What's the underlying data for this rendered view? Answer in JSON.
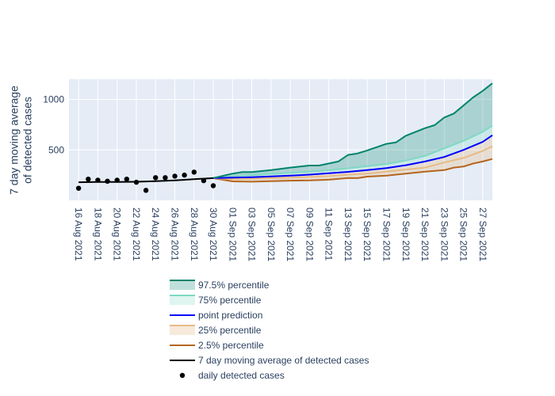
{
  "chart_data": {
    "type": "line",
    "title": "",
    "xlabel": "",
    "ylabel": "7 day moving average\nof detected cases",
    "x_tick_labels": [
      "16 Aug 2021",
      "18 Aug 2021",
      "20 Aug 2021",
      "22 Aug 2021",
      "24 Aug 2021",
      "26 Aug 2021",
      "28 Aug 2021",
      "30 Aug 2021",
      "01 Sep 2021",
      "03 Sep 2021",
      "05 Sep 2021",
      "07 Sep 2021",
      "09 Sep 2021",
      "11 Sep 2021",
      "13 Sep 2021",
      "15 Sep 2021",
      "17 Sep 2021",
      "19 Sep 2021",
      "21 Sep 2021",
      "23 Sep 2021",
      "25 Sep 2021",
      "27 Sep 2021"
    ],
    "y_tick_labels": [
      "500",
      "1000"
    ],
    "xlim": [
      "2021-08-15",
      "2021-09-28"
    ],
    "ylim": [
      0,
      1200
    ],
    "grid": true,
    "legend_position": "bottom",
    "series": [
      {
        "key": "p975",
        "name": "97.5% percentile",
        "color": "#00846b",
        "fill": "rgba(0,132,107,0.25)",
        "x": [
          "2021-08-30",
          "2021-09-01",
          "2021-09-02",
          "2021-09-03",
          "2021-09-05",
          "2021-09-07",
          "2021-09-09",
          "2021-09-10",
          "2021-09-12",
          "2021-09-13",
          "2021-09-14",
          "2021-09-15",
          "2021-09-17",
          "2021-09-18",
          "2021-09-19",
          "2021-09-21",
          "2021-09-22",
          "2021-09-23",
          "2021-09-24",
          "2021-09-25",
          "2021-09-26",
          "2021-09-27",
          "2021-09-28"
        ],
        "y": [
          220,
          265,
          280,
          280,
          300,
          325,
          345,
          345,
          385,
          450,
          465,
          495,
          560,
          575,
          640,
          715,
          745,
          820,
          860,
          940,
          1020,
          1085,
          1160
        ]
      },
      {
        "key": "p75",
        "name": "75% percentile",
        "color": "#7fd9c4",
        "fill": "rgba(127,217,196,0.25)",
        "x": [
          "2021-08-30",
          "2021-09-01",
          "2021-09-03",
          "2021-09-05",
          "2021-09-07",
          "2021-09-09",
          "2021-09-11",
          "2021-09-13",
          "2021-09-15",
          "2021-09-17",
          "2021-09-19",
          "2021-09-21",
          "2021-09-23",
          "2021-09-25",
          "2021-09-27",
          "2021-09-28"
        ],
        "y": [
          220,
          240,
          250,
          262,
          272,
          285,
          298,
          318,
          340,
          360,
          395,
          440,
          515,
          590,
          680,
          740
        ]
      },
      {
        "key": "point",
        "name": "point prediction",
        "color": "#0000ff",
        "x": [
          "2021-08-30",
          "2021-09-01",
          "2021-09-03",
          "2021-09-05",
          "2021-09-07",
          "2021-09-09",
          "2021-09-11",
          "2021-09-13",
          "2021-09-15",
          "2021-09-17",
          "2021-09-19",
          "2021-09-21",
          "2021-09-23",
          "2021-09-25",
          "2021-09-27",
          "2021-09-28"
        ],
        "y": [
          220,
          225,
          230,
          238,
          245,
          255,
          268,
          282,
          300,
          320,
          348,
          385,
          430,
          500,
          580,
          645
        ]
      },
      {
        "key": "p25",
        "name": "25% percentile",
        "color": "#e6bb85",
        "fill": "rgba(230,187,133,0.3)",
        "x": [
          "2021-08-30",
          "2021-09-01",
          "2021-09-03",
          "2021-09-05",
          "2021-09-07",
          "2021-09-09",
          "2021-09-11",
          "2021-09-13",
          "2021-09-15",
          "2021-09-17",
          "2021-09-19",
          "2021-09-21",
          "2021-09-23",
          "2021-09-25",
          "2021-09-27",
          "2021-09-28"
        ],
        "y": [
          220,
          210,
          215,
          220,
          225,
          232,
          240,
          255,
          265,
          285,
          305,
          325,
          375,
          420,
          490,
          535
        ]
      },
      {
        "key": "p025",
        "name": "2.5% percentile",
        "color": "#b5651d",
        "x": [
          "2021-08-30",
          "2021-09-01",
          "2021-09-03",
          "2021-09-05",
          "2021-09-07",
          "2021-09-09",
          "2021-09-11",
          "2021-09-13",
          "2021-09-14",
          "2021-09-15",
          "2021-09-17",
          "2021-09-19",
          "2021-09-21",
          "2021-09-23",
          "2021-09-24",
          "2021-09-25",
          "2021-09-26",
          "2021-09-27",
          "2021-09-28"
        ],
        "y": [
          220,
          188,
          185,
          190,
          195,
          198,
          205,
          222,
          220,
          235,
          245,
          265,
          285,
          300,
          325,
          335,
          365,
          385,
          410
        ]
      },
      {
        "key": "ma7",
        "name": "7 day moving average of detected cases",
        "color": "#000000",
        "x": [
          "2021-08-16",
          "2021-08-18",
          "2021-08-20",
          "2021-08-22",
          "2021-08-24",
          "2021-08-26",
          "2021-08-28",
          "2021-08-30"
        ],
        "y": [
          180,
          182,
          183,
          184,
          190,
          198,
          210,
          220
        ]
      },
      {
        "key": "daily",
        "name": "daily detected cases",
        "color": "#000000",
        "mode": "markers",
        "x": [
          "2021-08-16",
          "2021-08-17",
          "2021-08-18",
          "2021-08-19",
          "2021-08-20",
          "2021-08-21",
          "2021-08-22",
          "2021-08-23",
          "2021-08-24",
          "2021-08-25",
          "2021-08-26",
          "2021-08-27",
          "2021-08-28",
          "2021-08-29",
          "2021-08-30"
        ],
        "y": [
          120,
          210,
          200,
          190,
          200,
          210,
          180,
          100,
          225,
          225,
          240,
          250,
          280,
          195,
          145
        ]
      }
    ]
  }
}
